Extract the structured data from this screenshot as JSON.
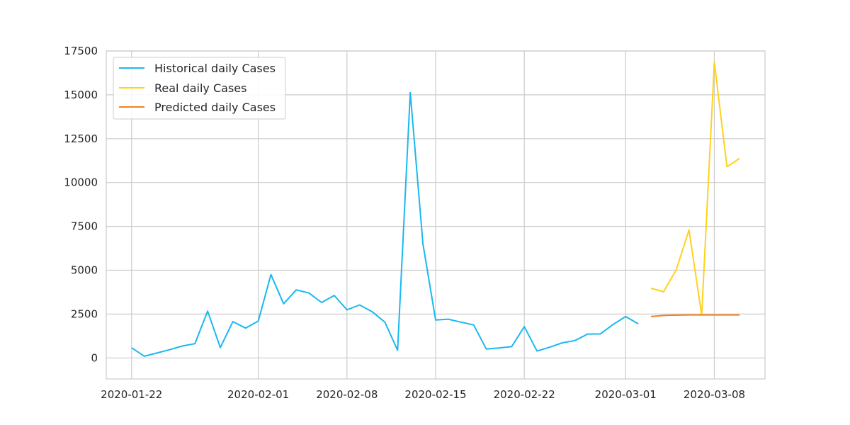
{
  "chart_data": {
    "type": "line",
    "title": "",
    "xlabel": "",
    "ylabel": "",
    "x_axis": {
      "type": "date",
      "range": [
        "2020-01-20",
        "2020-03-12"
      ],
      "ticks": [
        "2020-01-22",
        "2020-02-01",
        "2020-02-08",
        "2020-02-15",
        "2020-02-22",
        "2020-03-01",
        "2020-03-08"
      ]
    },
    "y_axis": {
      "range": [
        -1200,
        17500
      ],
      "ticks": [
        0,
        2500,
        5000,
        7500,
        10000,
        12500,
        15000,
        17500
      ]
    },
    "grid": true,
    "legend": {
      "position": "top-left",
      "entries": [
        "Historical daily Cases",
        "Real daily Cases",
        "Predicted daily Cases"
      ]
    },
    "series": [
      {
        "name": "Historical daily Cases",
        "color": "#1ab8f0",
        "points": [
          [
            "2020-01-22",
            580
          ],
          [
            "2020-01-23",
            95
          ],
          [
            "2020-01-24",
            280
          ],
          [
            "2020-01-25",
            470
          ],
          [
            "2020-01-26",
            680
          ],
          [
            "2020-01-27",
            810
          ],
          [
            "2020-01-28",
            2670
          ],
          [
            "2020-01-29",
            590
          ],
          [
            "2020-01-30",
            2070
          ],
          [
            "2020-01-31",
            1700
          ],
          [
            "2020-02-01",
            2100
          ],
          [
            "2020-02-02",
            4750
          ],
          [
            "2020-02-03",
            3090
          ],
          [
            "2020-02-04",
            3880
          ],
          [
            "2020-02-05",
            3700
          ],
          [
            "2020-02-06",
            3160
          ],
          [
            "2020-02-07",
            3560
          ],
          [
            "2020-02-08",
            2740
          ],
          [
            "2020-02-09",
            3020
          ],
          [
            "2020-02-10",
            2630
          ],
          [
            "2020-02-11",
            2030
          ],
          [
            "2020-02-12",
            430
          ],
          [
            "2020-02-13",
            15130
          ],
          [
            "2020-02-14",
            6500
          ],
          [
            "2020-02-15",
            2160
          ],
          [
            "2020-02-16",
            2210
          ],
          [
            "2020-02-17",
            2040
          ],
          [
            "2020-02-18",
            1880
          ],
          [
            "2020-02-19",
            510
          ],
          [
            "2020-02-20",
            570
          ],
          [
            "2020-02-21",
            640
          ],
          [
            "2020-02-22",
            1780
          ],
          [
            "2020-02-23",
            390
          ],
          [
            "2020-02-24",
            610
          ],
          [
            "2020-02-25",
            860
          ],
          [
            "2020-02-26",
            990
          ],
          [
            "2020-02-27",
            1360
          ],
          [
            "2020-02-28",
            1370
          ],
          [
            "2020-02-29",
            1900
          ],
          [
            "2020-03-01",
            2360
          ],
          [
            "2020-03-02",
            1940
          ]
        ]
      },
      {
        "name": "Real daily Cases",
        "color": "#ffd21a",
        "points": [
          [
            "2020-03-03",
            3970
          ],
          [
            "2020-03-04",
            3770
          ],
          [
            "2020-03-05",
            5030
          ],
          [
            "2020-03-06",
            7300
          ],
          [
            "2020-03-07",
            2440
          ],
          [
            "2020-03-08",
            16850
          ],
          [
            "2020-03-09",
            10900
          ],
          [
            "2020-03-10",
            11380
          ]
        ]
      },
      {
        "name": "Predicted daily Cases",
        "color": "#f0821e",
        "points": [
          [
            "2020-03-03",
            2360
          ],
          [
            "2020-03-04",
            2420
          ],
          [
            "2020-03-05",
            2440
          ],
          [
            "2020-03-06",
            2450
          ],
          [
            "2020-03-07",
            2450
          ],
          [
            "2020-03-08",
            2450
          ],
          [
            "2020-03-09",
            2450
          ],
          [
            "2020-03-10",
            2450
          ]
        ]
      }
    ]
  }
}
